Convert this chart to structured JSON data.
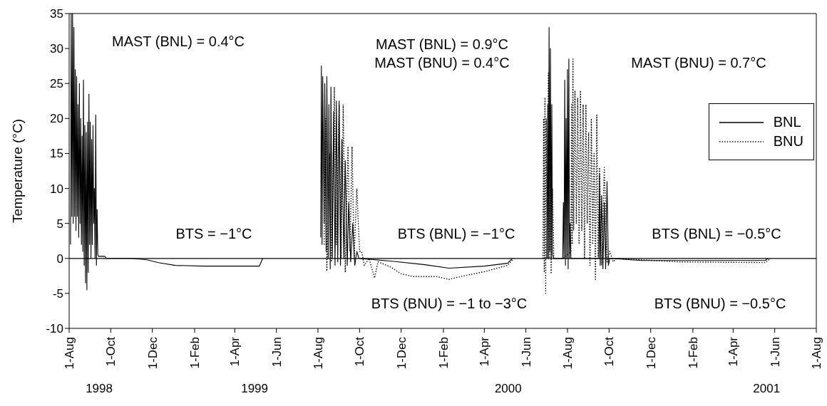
{
  "chart_data": {
    "type": "line",
    "ylabel": "Temperature (°C)",
    "xlim": [
      "1998-08-01",
      "2001-08-01"
    ],
    "xticks": [
      {
        "value": "1998-08-01",
        "label": "1-Aug"
      },
      {
        "value": "1998-10-01",
        "label": "1-Oct"
      },
      {
        "value": "1998-12-01",
        "label": "1-Dec"
      },
      {
        "value": "1999-02-01",
        "label": "1-Feb"
      },
      {
        "value": "1999-04-01",
        "label": "1-Apr"
      },
      {
        "value": "1999-06-01",
        "label": "1-Jun"
      },
      {
        "value": "1999-08-01",
        "label": "1-Aug"
      },
      {
        "value": "1999-10-01",
        "label": "1-Oct"
      },
      {
        "value": "1999-12-01",
        "label": "1-Dec"
      },
      {
        "value": "2000-02-01",
        "label": "1-Feb"
      },
      {
        "value": "2000-04-01",
        "label": "1-Apr"
      },
      {
        "value": "2000-06-01",
        "label": "1-Jun"
      },
      {
        "value": "2000-08-01",
        "label": "1-Aug"
      },
      {
        "value": "2000-10-01",
        "label": "1-Oct"
      },
      {
        "value": "2000-12-01",
        "label": "1-Dec"
      },
      {
        "value": "2001-02-01",
        "label": "1-Feb"
      },
      {
        "value": "2001-04-01",
        "label": "1-Apr"
      },
      {
        "value": "2001-06-01",
        "label": "1-Jun"
      },
      {
        "value": "2001-08-01",
        "label": "1-Aug"
      }
    ],
    "x2lim": [
      "1998-08-01",
      "2001-08-01"
    ],
    "x2ticks": [
      {
        "value": "1998-09-14",
        "label": "1998"
      },
      {
        "value": "1999-04-30",
        "label": "1999"
      },
      {
        "value": "2000-05-06",
        "label": "2000"
      },
      {
        "value": "2001-05-20",
        "label": "2001"
      }
    ],
    "ylim": [
      -10,
      35
    ],
    "yticks": [
      -10,
      -5,
      0,
      5,
      10,
      15,
      20,
      25,
      30,
      35
    ],
    "grid": false,
    "legend": "right",
    "marker": "none",
    "ref_lines": [
      {
        "axis": "y",
        "value": 0,
        "color": "#000000",
        "line_style": "solid"
      }
    ],
    "annotations": [
      "MAST (BNL) = 0.4°C",
      "BTS = −1°C",
      "MAST (BNL) = 0.9°C",
      "MAST (BNU) = 0.4°C",
      "BTS (BNL) = −1°C",
      "BTS (BNU) = −1 to −3°C",
      "MAST (BNU) = 0.7°C",
      "BTS (BNL) = −0.5°C",
      "BTS (BNU) = −0.5°C"
    ],
    "series": [
      {
        "name": "BNL",
        "color": "#000000",
        "line_style": "solid",
        "x": [
          "1998-08-03",
          "1998-08-04",
          "1998-08-05",
          "1998-08-06",
          "1998-08-07",
          "1998-08-08",
          "1998-08-09",
          "1998-08-10",
          "1998-08-11",
          "1998-08-12",
          "1998-08-13",
          "1998-08-14",
          "1998-08-15",
          "1998-08-16",
          "1998-08-17",
          "1998-08-18",
          "1998-08-19",
          "1998-08-20",
          "1998-08-21",
          "1998-08-22",
          "1998-08-23",
          "1998-08-24",
          "1998-08-25",
          "1998-08-26",
          "1998-08-27",
          "1998-08-28",
          "1998-08-29",
          "1998-08-30",
          "1998-08-31",
          "1998-09-01",
          "1998-09-02",
          "1998-09-03",
          "1998-09-04",
          "1998-09-05",
          "1998-09-06",
          "1998-09-07",
          "1998-09-08",
          "1998-09-09",
          "1998-09-10",
          "1998-09-11",
          "1998-09-12",
          "1998-09-13",
          "1998-09-22",
          "1998-09-25",
          "1998-11-01",
          "1998-11-23",
          "1998-12-10",
          "1999-01-04",
          "1999-02-15",
          "1999-04-01",
          "1999-05-07",
          "1999-05-12",
          "1999-06-15",
          "1999-08-05",
          "1999-08-06",
          "1999-08-07",
          "1999-08-08",
          "1999-08-10",
          "1999-08-11",
          "1999-08-13",
          "1999-08-14",
          "1999-08-16",
          "1999-08-17",
          "1999-08-19",
          "1999-08-20",
          "1999-08-22",
          "1999-08-24",
          "1999-08-26",
          "1999-08-28",
          "1999-08-30",
          "1999-09-01",
          "1999-09-03",
          "1999-09-05",
          "1999-09-08",
          "1999-09-10",
          "1999-09-13",
          "1999-09-15",
          "1999-09-18",
          "1999-09-21",
          "1999-09-24",
          "1999-09-27",
          "1999-09-30",
          "1999-11-18",
          "2000-01-05",
          "2000-02-09",
          "2000-04-01",
          "2000-05-05",
          "2000-05-12",
          "2000-06-01",
          "2000-07-02",
          "2000-07-03",
          "2000-07-04",
          "2000-07-05",
          "2000-07-06",
          "2000-07-07",
          "2000-07-08",
          "2000-07-09",
          "2000-07-10",
          "2000-07-12",
          "2000-07-25",
          "2000-07-26",
          "2000-07-27",
          "2000-07-28",
          "2000-07-29",
          "2000-07-30",
          "2000-07-31",
          "2000-08-01",
          "2000-08-02",
          "2000-08-03",
          "2000-08-04",
          "2000-08-05",
          "2000-08-06",
          "2000-09-16",
          "2000-09-17",
          "2000-09-18",
          "2000-09-20",
          "2000-09-22",
          "2000-09-24",
          "2000-09-26",
          "2000-09-28",
          "2000-09-30",
          "2000-10-02",
          "2000-11-18",
          "2001-05-18",
          "2001-05-22"
        ],
        "values": [
          2,
          35,
          6,
          35,
          5,
          33,
          6,
          27,
          4,
          26,
          6,
          22,
          3,
          25,
          5,
          20,
          2,
          17.5,
          1,
          25.5,
          -1,
          19,
          -3.5,
          18,
          -4.5,
          19.5,
          -2,
          23.5,
          2,
          19.5,
          0,
          17,
          2,
          19,
          5,
          10,
          0,
          20.5,
          -1,
          7,
          0.5,
          0.3,
          0.3,
          0,
          0,
          -0.2,
          -0.6,
          -1,
          -1.1,
          -1.1,
          -1.1,
          0,
          null,
          3,
          27.5,
          2,
          26,
          5,
          25,
          1,
          26,
          0,
          22,
          -1.5,
          24.5,
          0,
          21,
          -1,
          22.5,
          -0.5,
          22.5,
          -1,
          17,
          0,
          14,
          -1,
          8,
          -0.5,
          5,
          -1,
          1,
          0,
          -0.4,
          -0.9,
          -1.4,
          -1.1,
          -0.7,
          0,
          null,
          0,
          22,
          0,
          33,
          1,
          30,
          0,
          22,
          0.5,
          0,
          0,
          8,
          0,
          25.5,
          -1,
          20,
          0,
          27,
          -1.5,
          28.5,
          0,
          5,
          0,
          0,
          12,
          -1,
          9,
          -1.5,
          8,
          -1.5,
          11,
          -1,
          0,
          -0.3,
          -0.3,
          0
        ]
      },
      {
        "name": "BNU",
        "color": "#000000",
        "line_style": "dotted",
        "x": [
          "1999-08-10",
          "1999-08-12",
          "1999-08-14",
          "1999-08-18",
          "1999-08-21",
          "1999-08-25",
          "1999-08-28",
          "1999-09-01",
          "1999-09-04",
          "1999-09-07",
          "1999-09-10",
          "1999-09-14",
          "1999-09-17",
          "1999-09-20",
          "1999-09-23",
          "1999-09-27",
          "1999-10-01",
          "1999-10-04",
          "1999-10-08",
          "1999-10-15",
          "1999-10-23",
          "1999-10-28",
          "1999-11-05",
          "1999-11-15",
          "1999-12-01",
          "1999-12-19",
          "2000-01-22",
          "2000-02-09",
          "2000-02-26",
          "2000-04-01",
          "2000-05-05",
          "2000-05-14",
          "2000-06-01",
          "2000-06-26",
          "2000-06-27",
          "2000-06-28",
          "2000-06-29",
          "2000-06-30",
          "2000-07-01",
          "2000-07-02",
          "2000-07-04",
          "2000-07-05",
          "2000-07-07",
          "2000-07-08",
          "2000-07-10",
          "2000-07-12",
          "2000-07-26",
          "2000-08-06",
          "2000-08-07",
          "2000-08-08",
          "2000-08-09",
          "2000-08-10",
          "2000-08-12",
          "2000-08-14",
          "2000-08-16",
          "2000-08-18",
          "2000-08-20",
          "2000-08-22",
          "2000-08-24",
          "2000-08-26",
          "2000-08-28",
          "2000-08-30",
          "2000-09-01",
          "2000-09-03",
          "2000-09-05",
          "2000-09-07",
          "2000-09-09",
          "2000-09-11",
          "2000-09-13",
          "2000-09-15",
          "2000-09-17",
          "2000-09-20",
          "2000-09-24",
          "2000-09-28",
          "2000-10-02",
          "2000-10-07",
          "2000-10-12",
          "2001-01-13",
          "2001-05-18",
          "2001-05-26"
        ],
        "values": [
          2,
          20,
          -1.8,
          15,
          -0.5,
          24.5,
          2,
          22,
          0,
          22,
          -2,
          16,
          1,
          16,
          0,
          10,
          1,
          1,
          -1,
          0,
          -2.8,
          -0.5,
          -0.8,
          -1.2,
          -2.2,
          -2.6,
          -2.6,
          -3,
          -2.6,
          -1.9,
          -1,
          0,
          null,
          0,
          20,
          -2,
          23,
          -5,
          20,
          0,
          26.5,
          0,
          22,
          -2.2,
          10,
          0,
          0,
          1,
          22,
          2,
          28.5,
          4,
          24,
          5,
          23,
          2,
          24,
          4,
          22,
          0,
          22,
          5,
          18,
          -1,
          20,
          2,
          15,
          -3,
          20.5,
          0,
          13,
          -1,
          13,
          -0.5,
          1,
          -0.5,
          0,
          -0.5,
          -0.6,
          0
        ]
      }
    ]
  }
}
